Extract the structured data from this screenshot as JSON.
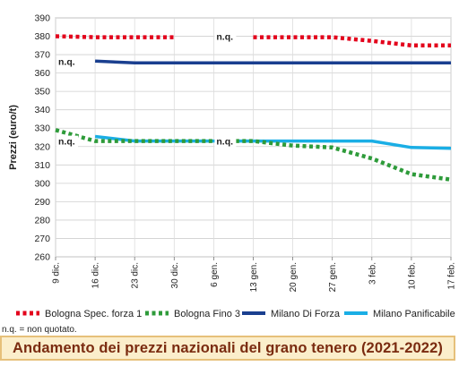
{
  "chart_data": {
    "type": "line",
    "title": "Andamento dei prezzi nazionali del grano tenero (2021-2022)",
    "ylabel": "Prezzi (euro/t)",
    "xlabel": "",
    "ylim": [
      260,
      390
    ],
    "yticks": [
      260,
      270,
      280,
      290,
      300,
      310,
      320,
      330,
      340,
      350,
      360,
      370,
      380,
      390
    ],
    "categories": [
      "9 dic.",
      "16 dic.",
      "23 dic.",
      "30 dic.",
      "6 gen.",
      "13 gen.",
      "20 gen.",
      "27 gen.",
      "3 feb.",
      "10 feb.",
      "17 feb."
    ],
    "grid": true,
    "legend_position": "bottom",
    "series": [
      {
        "name": "Bologna Spec. forza 1",
        "color": "#e3001b",
        "style": "dotted",
        "values": [
          380,
          379.5,
          379.5,
          379.5,
          null,
          379.5,
          379.5,
          379.5,
          377.5,
          375,
          375
        ]
      },
      {
        "name": "Bologna Fino 3",
        "color": "#2e9b3a",
        "style": "dotted",
        "values": [
          329,
          323,
          323,
          323,
          323,
          323,
          320.5,
          319.5,
          313.5,
          305,
          302
        ]
      },
      {
        "name": "Milano Di Forza",
        "color": "#1a3f8f",
        "style": "solid",
        "values": [
          null,
          366.5,
          365.5,
          365.5,
          365.5,
          365.5,
          365.5,
          365.5,
          365.5,
          365.5,
          365.5
        ]
      },
      {
        "name": "Milano Panificabile",
        "color": "#1aaee5",
        "style": "solid",
        "values": [
          null,
          325.5,
          323,
          323,
          323,
          323,
          323,
          323,
          323,
          319.5,
          319
        ]
      }
    ],
    "annotations": [
      {
        "text": "n.q.",
        "x": "6 gen.",
        "y": 380
      },
      {
        "text": "n.q.",
        "x": "9 dic.",
        "y": 366.5
      },
      {
        "text": "n.q.",
        "x": "9 dic.",
        "y": 323
      },
      {
        "text": "n.q.",
        "x": "6 gen.",
        "y": 323
      }
    ]
  },
  "footer_note": "n.q. = non quotato."
}
